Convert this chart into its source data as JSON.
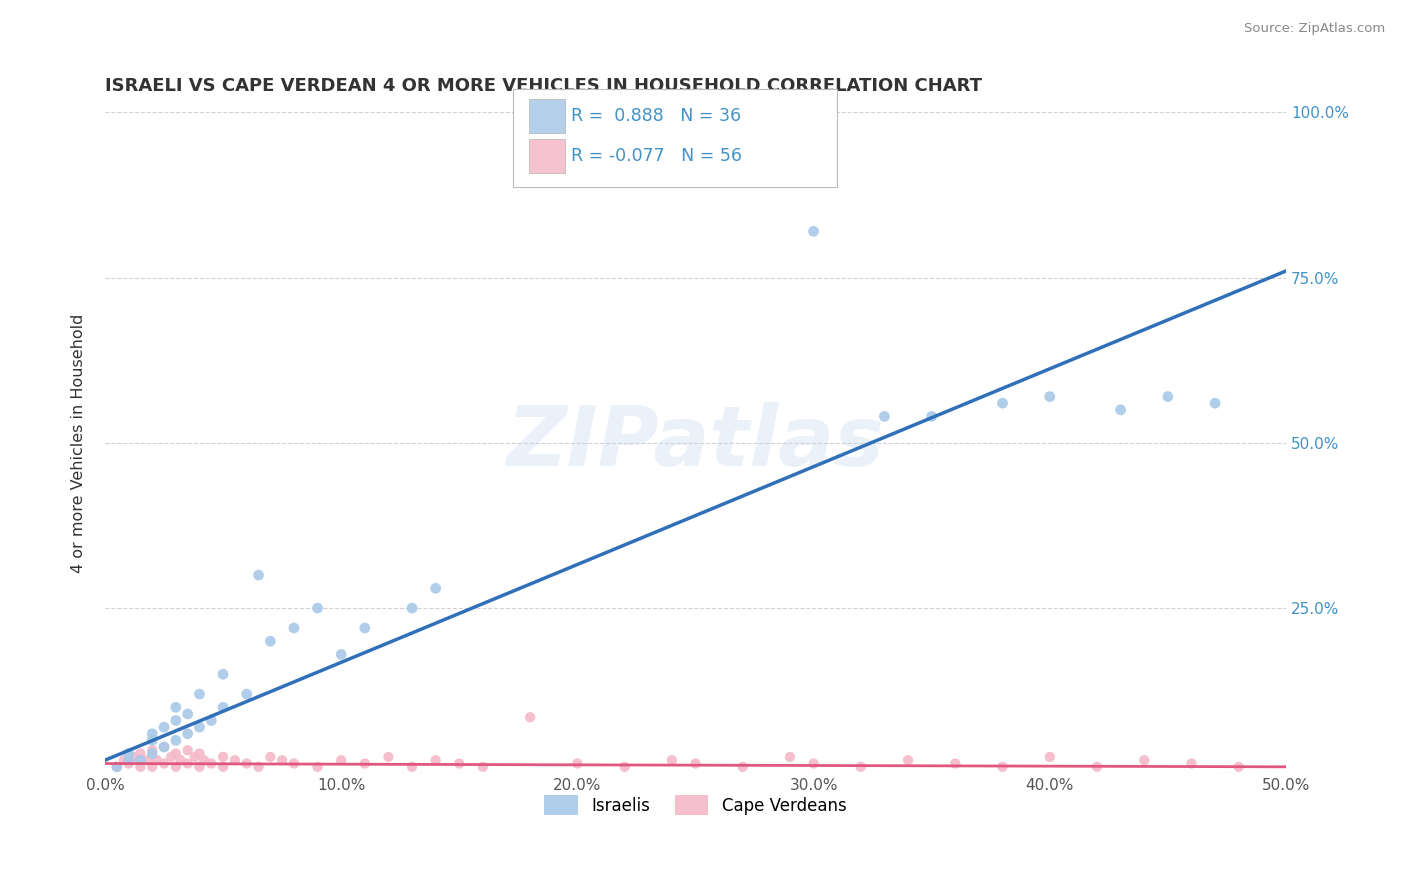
{
  "title": "ISRAELI VS CAPE VERDEAN 4 OR MORE VEHICLES IN HOUSEHOLD CORRELATION CHART",
  "source": "Source: ZipAtlas.com",
  "ylabel": "4 or more Vehicles in Household",
  "xlim": [
    0.0,
    0.5
  ],
  "ylim": [
    0.0,
    1.0
  ],
  "xtick_labels": [
    "0.0%",
    "10.0%",
    "20.0%",
    "30.0%",
    "40.0%",
    "50.0%"
  ],
  "xtick_vals": [
    0.0,
    0.1,
    0.2,
    0.3,
    0.4,
    0.5
  ],
  "ytick_vals": [
    0.0,
    0.25,
    0.5,
    0.75,
    1.0
  ],
  "ytick_labels_right": [
    "",
    "25.0%",
    "50.0%",
    "75.0%",
    "100.0%"
  ],
  "watermark_text": "ZIPatlas",
  "israeli_color": "#a8c8e8",
  "cape_verdean_color": "#f5b8c8",
  "israeli_line_color": "#3070b8",
  "cape_verdean_line_color": "#e05880",
  "background_color": "#ffffff",
  "grid_color": "#cccccc",
  "title_color": "#333333",
  "source_color": "#888888",
  "right_axis_color": "#4292c6",
  "legend_value_color": "#4292c6",
  "israeli_scatter_x": [
    0.005,
    0.01,
    0.01,
    0.015,
    0.02,
    0.02,
    0.02,
    0.025,
    0.025,
    0.03,
    0.03,
    0.03,
    0.035,
    0.035,
    0.04,
    0.04,
    0.045,
    0.05,
    0.05,
    0.06,
    0.065,
    0.07,
    0.08,
    0.09,
    0.1,
    0.11,
    0.13,
    0.14,
    0.3,
    0.33,
    0.35,
    0.38,
    0.4,
    0.43,
    0.45,
    0.47
  ],
  "israeli_scatter_y": [
    0.01,
    0.02,
    0.03,
    0.02,
    0.03,
    0.05,
    0.06,
    0.04,
    0.07,
    0.05,
    0.08,
    0.1,
    0.06,
    0.09,
    0.07,
    0.12,
    0.08,
    0.1,
    0.15,
    0.12,
    0.3,
    0.2,
    0.22,
    0.25,
    0.18,
    0.22,
    0.25,
    0.28,
    0.82,
    0.54,
    0.54,
    0.56,
    0.57,
    0.55,
    0.57,
    0.56
  ],
  "cape_verdean_scatter_x": [
    0.005,
    0.008,
    0.01,
    0.012,
    0.015,
    0.015,
    0.018,
    0.02,
    0.02,
    0.022,
    0.025,
    0.025,
    0.028,
    0.03,
    0.03,
    0.032,
    0.035,
    0.035,
    0.038,
    0.04,
    0.04,
    0.042,
    0.045,
    0.05,
    0.05,
    0.055,
    0.06,
    0.065,
    0.07,
    0.075,
    0.08,
    0.09,
    0.1,
    0.11,
    0.12,
    0.13,
    0.14,
    0.15,
    0.16,
    0.18,
    0.2,
    0.22,
    0.24,
    0.25,
    0.27,
    0.29,
    0.3,
    0.32,
    0.34,
    0.36,
    0.38,
    0.4,
    0.42,
    0.44,
    0.46,
    0.48
  ],
  "cape_verdean_scatter_y": [
    0.01,
    0.02,
    0.015,
    0.025,
    0.01,
    0.03,
    0.02,
    0.01,
    0.035,
    0.02,
    0.015,
    0.04,
    0.025,
    0.01,
    0.03,
    0.02,
    0.015,
    0.035,
    0.025,
    0.01,
    0.03,
    0.02,
    0.015,
    0.01,
    0.025,
    0.02,
    0.015,
    0.01,
    0.025,
    0.02,
    0.015,
    0.01,
    0.02,
    0.015,
    0.025,
    0.01,
    0.02,
    0.015,
    0.01,
    0.085,
    0.015,
    0.01,
    0.02,
    0.015,
    0.01,
    0.025,
    0.015,
    0.01,
    0.02,
    0.015,
    0.01,
    0.025,
    0.01,
    0.02,
    0.015,
    0.01
  ],
  "israeli_trendline_x": [
    0.0,
    0.5
  ],
  "israeli_trendline_y": [
    0.02,
    0.76
  ],
  "cape_verdean_trendline_x": [
    0.0,
    0.5
  ],
  "cape_verdean_trendline_y": [
    0.015,
    0.01
  ]
}
